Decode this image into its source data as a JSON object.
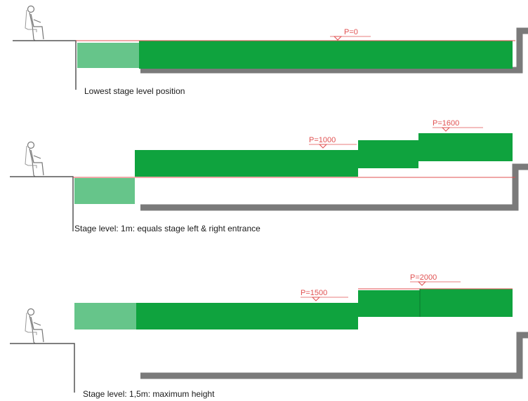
{
  "colors": {
    "stage_green": "#0fa33e",
    "apron_green": "#66c58a",
    "pit_grey": "#7a7a7a",
    "level_red": "#e05050",
    "outline": "#555555"
  },
  "panels": [
    {
      "caption": "Lowest stage level position",
      "levels": [
        "P=0"
      ]
    },
    {
      "caption": "Stage level: 1m: equals stage left & right entrance",
      "levels": [
        "P=1000",
        "P=1600"
      ]
    },
    {
      "caption": "Stage level: 1,5m: maximum height",
      "levels": [
        "P=1500",
        "P=2000"
      ]
    }
  ]
}
